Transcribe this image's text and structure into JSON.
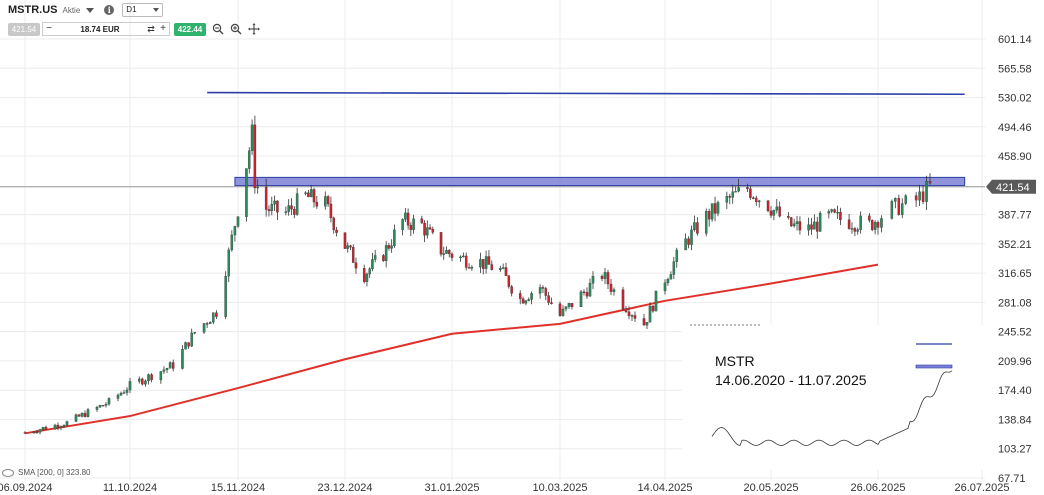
{
  "toolbar": {
    "symbol": "MSTR.US",
    "type": "Aktie",
    "timeframe": "D1",
    "bid": "421.54",
    "quantity": "18.74 EUR",
    "ask": "422.44"
  },
  "inset": {
    "title": "MSTR",
    "date_range": "14.06.2020 - 11.07.2025"
  },
  "indicator_label": "SMA [200, 0] 323.80",
  "chart_data": {
    "type": "candlestick",
    "x_ticks": [
      "06.09.2024",
      "11.10.2024",
      "15.11.2024",
      "23.12.2024",
      "31.01.2025",
      "10.03.2025",
      "14.04.2025",
      "20.05.2025",
      "26.06.2025",
      "26.07.2025"
    ],
    "y_ticks": [
      601.14,
      565.58,
      530.02,
      494.46,
      458.9,
      421.54,
      387.77,
      352.21,
      316.65,
      281.08,
      245.52,
      209.96,
      174.4,
      138.84,
      103.27,
      67.71
    ],
    "last_price": 421.54,
    "x_range": [
      "2024-09-06",
      "2025-07-26"
    ],
    "y_range": [
      67.71,
      601.14
    ],
    "series": [
      {
        "kind": "horizontal_line",
        "color": "#2c3fa8",
        "start_date": "2024-11-05",
        "end_date": "2025-07-21",
        "start_value": 536.0,
        "end_value": 534.0
      },
      {
        "kind": "resistance_zone",
        "color": "#7c80d6",
        "start_date": "2024-11-14",
        "end_date": "2025-07-21",
        "low": 423.0,
        "high": 433.0
      },
      {
        "kind": "sma_200",
        "color": "#e0302a",
        "points": [
          [
            "2024-09-06",
            122
          ],
          [
            "2024-10-11",
            143
          ],
          [
            "2024-11-15",
            177
          ],
          [
            "2024-12-23",
            212
          ],
          [
            "2025-01-31",
            243
          ],
          [
            "2025-03-10",
            255
          ],
          [
            "2025-04-14",
            283
          ],
          [
            "2025-05-20",
            304
          ],
          [
            "2025-06-26",
            327
          ]
        ]
      }
    ],
    "close_anchors": [
      [
        "2024-09-06",
        123
      ],
      [
        "2024-09-20",
        135
      ],
      [
        "2024-10-04",
        160
      ],
      [
        "2024-10-11",
        180
      ],
      [
        "2024-10-25",
        205
      ],
      [
        "2024-11-01",
        245
      ],
      [
        "2024-11-08",
        270
      ],
      [
        "2024-11-12",
        340
      ],
      [
        "2024-11-15",
        395
      ],
      [
        "2024-11-20",
        485
      ],
      [
        "2024-11-21",
        430
      ],
      [
        "2024-11-25",
        395
      ],
      [
        "2024-12-02",
        390
      ],
      [
        "2024-12-09",
        410
      ],
      [
        "2024-12-16",
        400
      ],
      [
        "2024-12-23",
        350
      ],
      [
        "2024-12-30",
        315
      ],
      [
        "2025-01-06",
        340
      ],
      [
        "2025-01-13",
        380
      ],
      [
        "2025-01-20",
        375
      ],
      [
        "2025-01-27",
        345
      ],
      [
        "2025-02-03",
        335
      ],
      [
        "2025-02-10",
        330
      ],
      [
        "2025-02-17",
        320
      ],
      [
        "2025-02-24",
        285
      ],
      [
        "2025-03-03",
        300
      ],
      [
        "2025-03-10",
        265
      ],
      [
        "2025-03-17",
        290
      ],
      [
        "2025-03-24",
        315
      ],
      [
        "2025-03-31",
        280
      ],
      [
        "2025-04-07",
        255
      ],
      [
        "2025-04-14",
        310
      ],
      [
        "2025-04-21",
        355
      ],
      [
        "2025-04-28",
        385
      ],
      [
        "2025-05-05",
        405
      ],
      [
        "2025-05-12",
        420
      ],
      [
        "2025-05-19",
        400
      ],
      [
        "2025-05-26",
        375
      ],
      [
        "2025-06-02",
        370
      ],
      [
        "2025-06-09",
        385
      ],
      [
        "2025-06-16",
        380
      ],
      [
        "2025-06-23",
        375
      ],
      [
        "2025-06-30",
        395
      ],
      [
        "2025-07-07",
        405
      ],
      [
        "2025-07-11",
        421.54
      ]
    ]
  }
}
